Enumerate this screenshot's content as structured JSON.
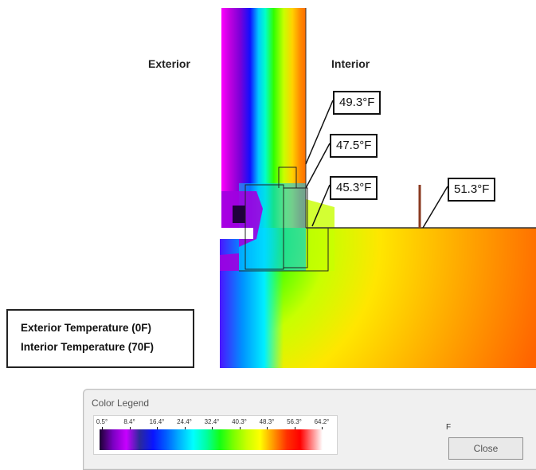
{
  "labels": {
    "exterior": "Exterior",
    "interior": "Interior"
  },
  "callouts": [
    {
      "id": "c1",
      "text": "49.3°F"
    },
    {
      "id": "c2",
      "text": "47.5°F"
    },
    {
      "id": "c3",
      "text": "45.3°F"
    },
    {
      "id": "c4",
      "text": "51.3°F"
    }
  ],
  "conditions": {
    "exterior": "Exterior Temperature (0F)",
    "interior": "Interior Temperature (70F)"
  },
  "legend": {
    "title": "Color Legend",
    "ticks": [
      "0.5°",
      "8.4°",
      "16.4°",
      "24.4°",
      "32.4°",
      "40.3°",
      "48.3°",
      "56.3°",
      "64.2°"
    ],
    "unit": "F",
    "close_label": "Close"
  },
  "colors": {
    "cold": "#6a00c8",
    "cool": "#00ffff",
    "mid": "#14ff14",
    "warm": "#ffff00",
    "hot": "#ff5a00"
  }
}
